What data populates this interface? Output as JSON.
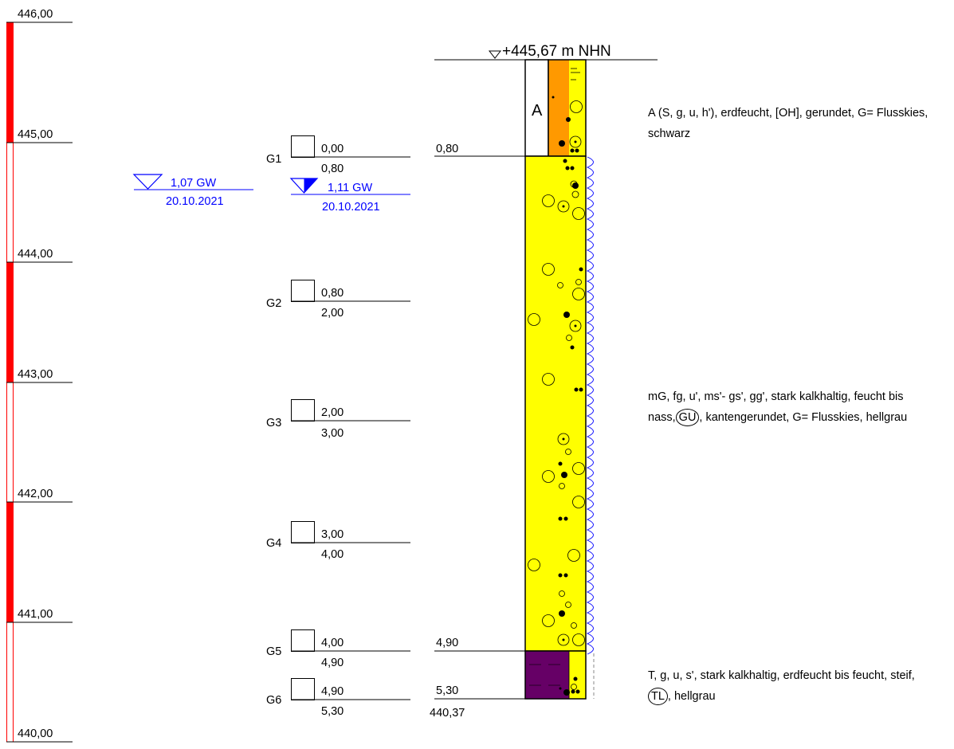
{
  "profile": {
    "elevation_scale": {
      "labels": [
        "446,00",
        "445,00",
        "444,00",
        "443,00",
        "442,00",
        "441,00",
        "440,00"
      ],
      "values": [
        446,
        445,
        444,
        443,
        442,
        441,
        440
      ]
    },
    "top_elevation_label": "+445,67 m NHN",
    "groundwater_left": {
      "depth": "1,07 GW",
      "date": "20.10.2021",
      "value_m": 1.07
    },
    "groundwater_right": {
      "depth": "1,11 GW",
      "date": "20.10.2021",
      "value_m": 1.11
    },
    "samples": [
      {
        "id": "G1",
        "top": "0,00",
        "bottom": "0,80"
      },
      {
        "id": "G2",
        "top": "0,80",
        "bottom": "2,00"
      },
      {
        "id": "G3",
        "top": "2,00",
        "bottom": "3,00"
      },
      {
        "id": "G4",
        "top": "3,00",
        "bottom": "4,00"
      },
      {
        "id": "G5",
        "top": "4,00",
        "bottom": "4,90"
      },
      {
        "id": "G6",
        "top": "4,90",
        "bottom": "5,30"
      }
    ],
    "layer_boundaries": [
      {
        "depth": "0,80"
      },
      {
        "depth": "4,90"
      },
      {
        "depth": "5,30",
        "elevation": "440,37"
      }
    ],
    "layer_code_A": "A",
    "layers": [
      {
        "from_m": 0.0,
        "to_m": 0.8,
        "color": "#FF9900",
        "text_before": "A (S, g, u, h'), erdfeucht, [OH], gerundet, G= Flusskies, schwarz",
        "soil_group": "",
        "text_after": ""
      },
      {
        "from_m": 0.8,
        "to_m": 4.9,
        "color": "#FFFF00",
        "text_before": "mG, fg, u', ms'- gs', gg', stark kalkhaltig, feucht bis nass,",
        "soil_group": "GU",
        "text_after": ", kantengerundet, G= Flusskies, hellgrau"
      },
      {
        "from_m": 4.9,
        "to_m": 5.3,
        "color": "#660066",
        "text_before": "T, g, u, s', stark kalkhaltig, erdfeucht bis feucht, steif,",
        "soil_group": "TL",
        "text_after": ", hellgrau"
      }
    ],
    "colors": {
      "scale_red": "#FF0000",
      "groundwater_blue": "#0000FF",
      "sand_yellow": "#FFFF00"
    }
  }
}
